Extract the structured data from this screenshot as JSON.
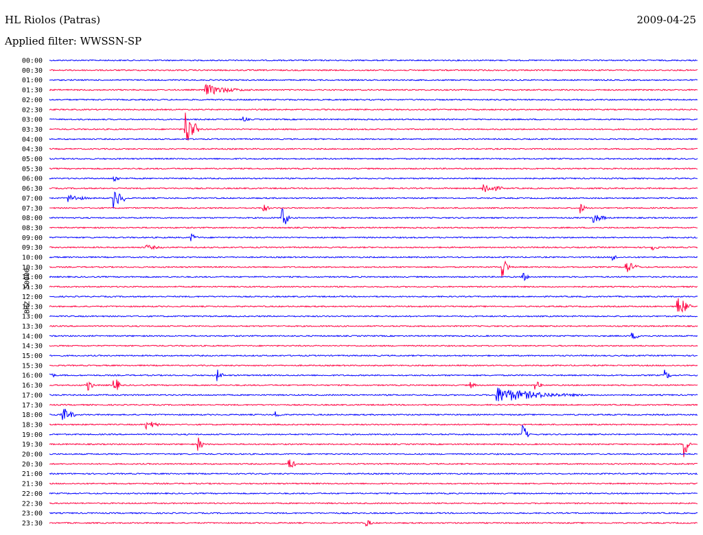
{
  "header": {
    "station": "HL Riolos (Patras)",
    "date": "2009-04-25",
    "filter": "Applied filter: WWSSN-SP"
  },
  "chart_data": {
    "type": "line",
    "title": "HL Riolos (Patras)",
    "ylabel": "BHZ - 50000",
    "colors": [
      "#0000ff",
      "#ff0040"
    ],
    "rows": [
      "00:00",
      "00:30",
      "01:00",
      "01:30",
      "02:00",
      "02:30",
      "03:00",
      "03:30",
      "04:00",
      "04:30",
      "05:00",
      "05:30",
      "06:00",
      "06:30",
      "07:00",
      "07:30",
      "08:00",
      "08:30",
      "09:00",
      "09:30",
      "10:00",
      "10:30",
      "11:00",
      "11:30",
      "12:00",
      "12:30",
      "13:00",
      "13:30",
      "14:00",
      "14:30",
      "15:00",
      "15:30",
      "16:00",
      "16:30",
      "17:00",
      "17:30",
      "18:00",
      "18:30",
      "19:00",
      "19:30",
      "20:00",
      "20:30",
      "21:00",
      "21:30",
      "22:00",
      "22:30",
      "23:00",
      "23:30"
    ],
    "events": [
      {
        "row": 3,
        "t": 0.24,
        "amp": 9,
        "dur": 0.1
      },
      {
        "row": 7,
        "t": 0.21,
        "amp": 28,
        "dur": 0.02
      },
      {
        "row": 6,
        "t": 0.3,
        "amp": 4,
        "dur": 0.01
      },
      {
        "row": 12,
        "t": 0.1,
        "amp": 6,
        "dur": 0.01
      },
      {
        "row": 13,
        "t": 0.67,
        "amp": 9,
        "dur": 0.03
      },
      {
        "row": 14,
        "t": 0.03,
        "amp": 6,
        "dur": 0.06
      },
      {
        "row": 14,
        "t": 0.1,
        "amp": 14,
        "dur": 0.02
      },
      {
        "row": 15,
        "t": 0.33,
        "amp": 7,
        "dur": 0.01
      },
      {
        "row": 15,
        "t": 0.82,
        "amp": 7,
        "dur": 0.01
      },
      {
        "row": 16,
        "t": 0.36,
        "amp": 18,
        "dur": 0.01
      },
      {
        "row": 16,
        "t": 0.84,
        "amp": 8,
        "dur": 0.02
      },
      {
        "row": 18,
        "t": 0.22,
        "amp": 6,
        "dur": 0.01
      },
      {
        "row": 19,
        "t": 0.15,
        "amp": 4,
        "dur": 0.03
      },
      {
        "row": 19,
        "t": 0.93,
        "amp": 6,
        "dur": 0.01
      },
      {
        "row": 20,
        "t": 0.87,
        "amp": 5,
        "dur": 0.01
      },
      {
        "row": 21,
        "t": 0.7,
        "amp": 16,
        "dur": 0.01
      },
      {
        "row": 21,
        "t": 0.89,
        "amp": 10,
        "dur": 0.02
      },
      {
        "row": 22,
        "t": 0.73,
        "amp": 8,
        "dur": 0.01
      },
      {
        "row": 25,
        "t": 0.97,
        "amp": 16,
        "dur": 0.02
      },
      {
        "row": 28,
        "t": 0.9,
        "amp": 5,
        "dur": 0.02
      },
      {
        "row": 32,
        "t": 0.0,
        "amp": 6,
        "dur": 0.01
      },
      {
        "row": 32,
        "t": 0.26,
        "amp": 8,
        "dur": 0.01
      },
      {
        "row": 32,
        "t": 0.95,
        "amp": 8,
        "dur": 0.01
      },
      {
        "row": 33,
        "t": 0.06,
        "amp": 8,
        "dur": 0.01
      },
      {
        "row": 33,
        "t": 0.1,
        "amp": 14,
        "dur": 0.01
      },
      {
        "row": 33,
        "t": 0.65,
        "amp": 5,
        "dur": 0.01
      },
      {
        "row": 33,
        "t": 0.75,
        "amp": 8,
        "dur": 0.01
      },
      {
        "row": 34,
        "t": 0.69,
        "amp": 12,
        "dur": 0.18
      },
      {
        "row": 36,
        "t": 0.02,
        "amp": 12,
        "dur": 0.02
      },
      {
        "row": 36,
        "t": 0.35,
        "amp": 5,
        "dur": 0.01
      },
      {
        "row": 37,
        "t": 0.15,
        "amp": 8,
        "dur": 0.02
      },
      {
        "row": 38,
        "t": 0.73,
        "amp": 16,
        "dur": 0.01
      },
      {
        "row": 39,
        "t": 0.23,
        "amp": 10,
        "dur": 0.01
      },
      {
        "row": 39,
        "t": 0.98,
        "amp": 18,
        "dur": 0.01
      },
      {
        "row": 41,
        "t": 0.37,
        "amp": 10,
        "dur": 0.01
      },
      {
        "row": 47,
        "t": 0.49,
        "amp": 6,
        "dur": 0.01
      }
    ]
  }
}
